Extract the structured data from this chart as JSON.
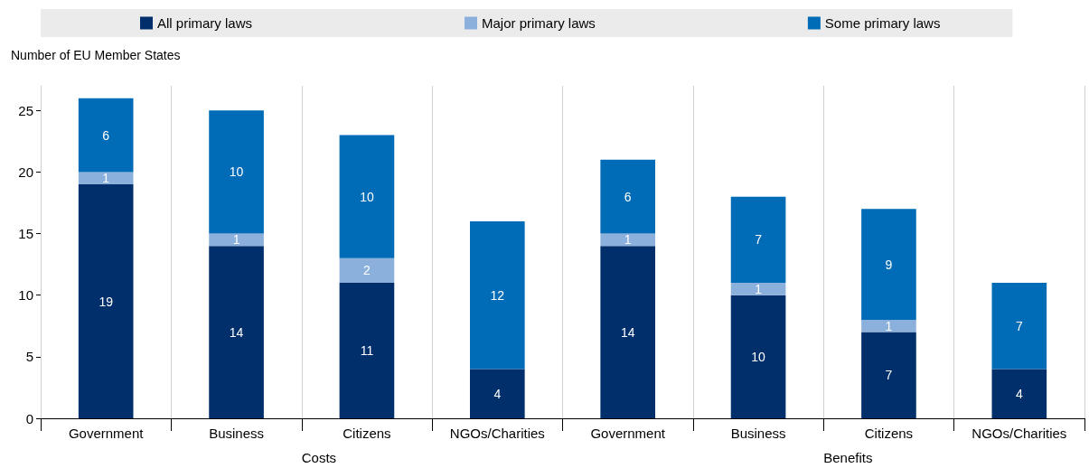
{
  "chart_data": {
    "type": "bar",
    "stacked": true,
    "ylabel": "Number of EU Member States",
    "categories": [
      "Government",
      "Business",
      "Citizens",
      "NGOs/Charities",
      "Government",
      "Business",
      "Citizens",
      "NGOs/Charities"
    ],
    "series": [
      {
        "name": "All primary laws",
        "color": "#002f6c",
        "values": [
          19,
          14,
          11,
          4,
          14,
          10,
          7,
          4
        ],
        "value_labels": [
          "19",
          "14",
          "11",
          "4",
          "14",
          "10",
          "7",
          "4"
        ]
      },
      {
        "name": "Major primary laws",
        "color": "#8cb0dc",
        "values": [
          1,
          1,
          2,
          0,
          1,
          1,
          1,
          0
        ],
        "value_labels": [
          "1",
          "1",
          "2",
          null,
          "1",
          "1",
          "1",
          null
        ]
      },
      {
        "name": "Some primary laws",
        "color": "#006bb6",
        "values": [
          6,
          10,
          10,
          12,
          6,
          7,
          9,
          7
        ],
        "value_labels": [
          "6",
          "10",
          "10",
          "12",
          "6",
          "7",
          "9",
          "7"
        ]
      }
    ],
    "annotations": [
      "Costs",
      "Benefits"
    ],
    "ylim": [
      0,
      27
    ],
    "yticks": [
      0,
      5,
      10,
      15,
      20,
      25
    ],
    "grid": "x",
    "legend": "top"
  }
}
